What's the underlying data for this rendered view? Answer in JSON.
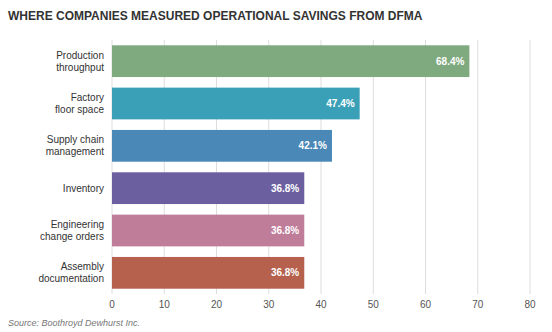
{
  "chart_data": {
    "type": "bar",
    "orientation": "horizontal",
    "title": "WHERE COMPANIES MEASURED OPERATIONAL SAVINGS FROM DFMA",
    "categories": [
      "Assembly\ndocumentation",
      "Engineering\nchange orders",
      "Inventory",
      "Supply chain\nmanagement",
      "Factory\nfloor space",
      "Production\nthroughput"
    ],
    "values": [
      36.8,
      36.8,
      36.8,
      42.1,
      47.4,
      68.4
    ],
    "value_labels": [
      "36.8%",
      "36.8%",
      "36.8%",
      "42.1%",
      "47.4%",
      "68.4%"
    ],
    "colors": [
      "#b5614e",
      "#bf7d9a",
      "#6b5fa0",
      "#4a88b8",
      "#3aa0b8",
      "#7faa80"
    ],
    "data_labels": true,
    "xlim": [
      0,
      80
    ],
    "xticks": [
      0,
      10,
      20,
      30,
      40,
      50,
      60,
      70,
      80
    ],
    "grid": true,
    "annotations": [
      "Source: Boothroyd Dewhurst Inc."
    ]
  }
}
